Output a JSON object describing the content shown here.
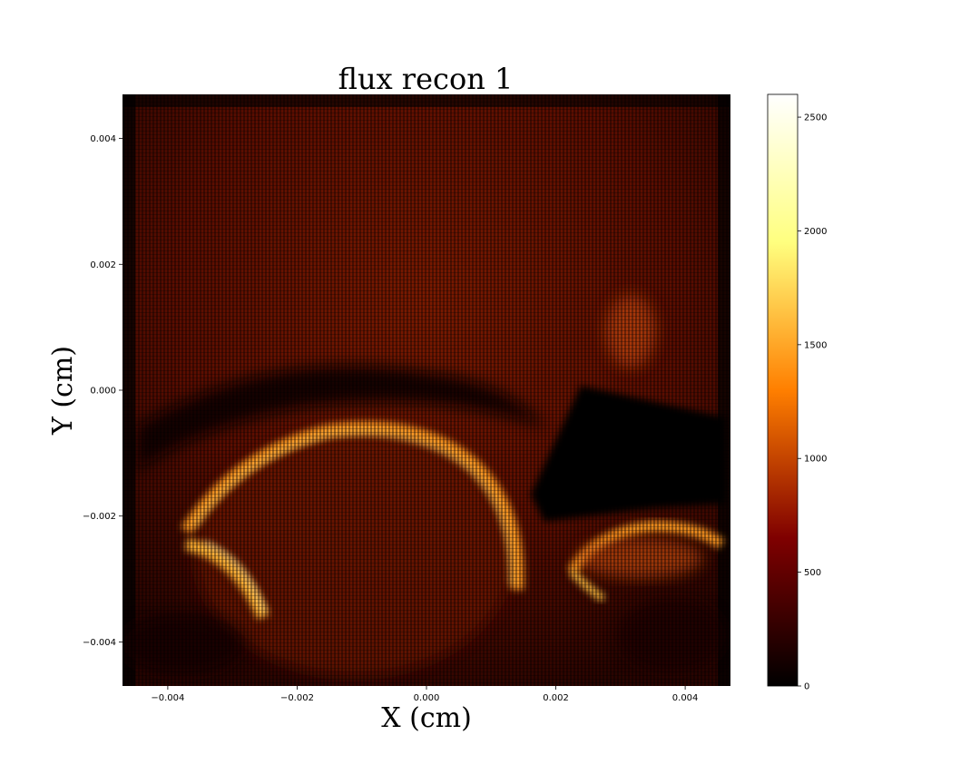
{
  "chart_data": {
    "type": "heatmap",
    "title": "flux recon 1",
    "xlabel": "X (cm)",
    "ylabel": "Y (cm)",
    "xlim": [
      -0.0047,
      0.0047
    ],
    "ylim": [
      -0.0047,
      0.0047
    ],
    "x_ticks": [
      -0.004,
      -0.002,
      0.0,
      0.002,
      0.004
    ],
    "x_tick_labels": [
      "−0.004",
      "−0.002",
      "0.000",
      "0.002",
      "0.004"
    ],
    "y_ticks": [
      0.004,
      0.002,
      0.0,
      -0.002,
      -0.004
    ],
    "y_tick_labels": [
      "0.004",
      "0.002",
      "0.000",
      "−0.002",
      "−0.004"
    ],
    "colorbar": {
      "colormap": "afmhot",
      "range": [
        0,
        2600
      ],
      "ticks": [
        0,
        500,
        1000,
        1500,
        2000,
        2500
      ],
      "tick_labels": [
        "0",
        "500",
        "1000",
        "1500",
        "2000",
        "2500"
      ]
    },
    "features": {
      "background_level": 450,
      "bright_arc_peak": 2100,
      "dark_region_level": 40
    }
  }
}
